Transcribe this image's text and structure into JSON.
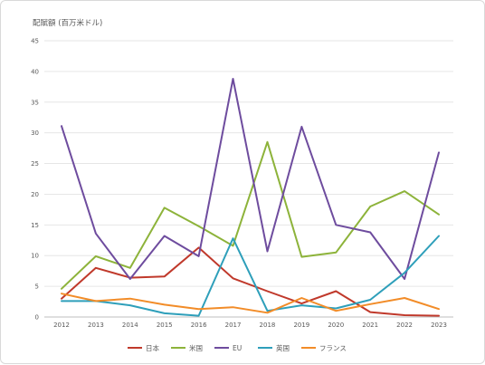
{
  "chart_data": {
    "type": "line",
    "title": "",
    "ylabel": "配賦額 (百万米ドル)",
    "xlabel": "",
    "ylim": [
      0,
      45
    ],
    "ytick_step": 5,
    "grid": true,
    "legend_position": "bottom",
    "x": [
      "2012",
      "2013",
      "2014",
      "2015",
      "2016",
      "2017",
      "2018",
      "2019",
      "2020",
      "2021",
      "2022",
      "2023"
    ],
    "series": [
      {
        "name": "日本",
        "color": "#c0392b",
        "values": [
          3.0,
          8.0,
          6.4,
          6.6,
          11.3,
          6.3,
          4.2,
          2.2,
          4.2,
          0.8,
          0.3,
          0.2
        ]
      },
      {
        "name": "米国",
        "color": "#8db33a",
        "values": [
          4.6,
          9.9,
          8.0,
          17.8,
          14.8,
          11.6,
          28.5,
          9.8,
          10.5,
          18.0,
          20.5,
          16.7
        ]
      },
      {
        "name": "EU",
        "color": "#6e4c9e",
        "values": [
          31.1,
          13.6,
          6.2,
          13.2,
          9.9,
          38.8,
          10.7,
          31.0,
          15.0,
          13.8,
          6.2,
          26.8
        ]
      },
      {
        "name": "英国",
        "color": "#2e9fba",
        "values": [
          2.6,
          2.6,
          1.9,
          0.6,
          0.2,
          12.8,
          1.0,
          1.9,
          1.4,
          2.8,
          7.2,
          13.2
        ]
      },
      {
        "name": "フランス",
        "color": "#f28c28",
        "values": [
          3.8,
          2.6,
          3.0,
          2.0,
          1.3,
          1.6,
          0.7,
          3.1,
          1.0,
          2.1,
          3.1,
          1.3
        ]
      }
    ]
  }
}
